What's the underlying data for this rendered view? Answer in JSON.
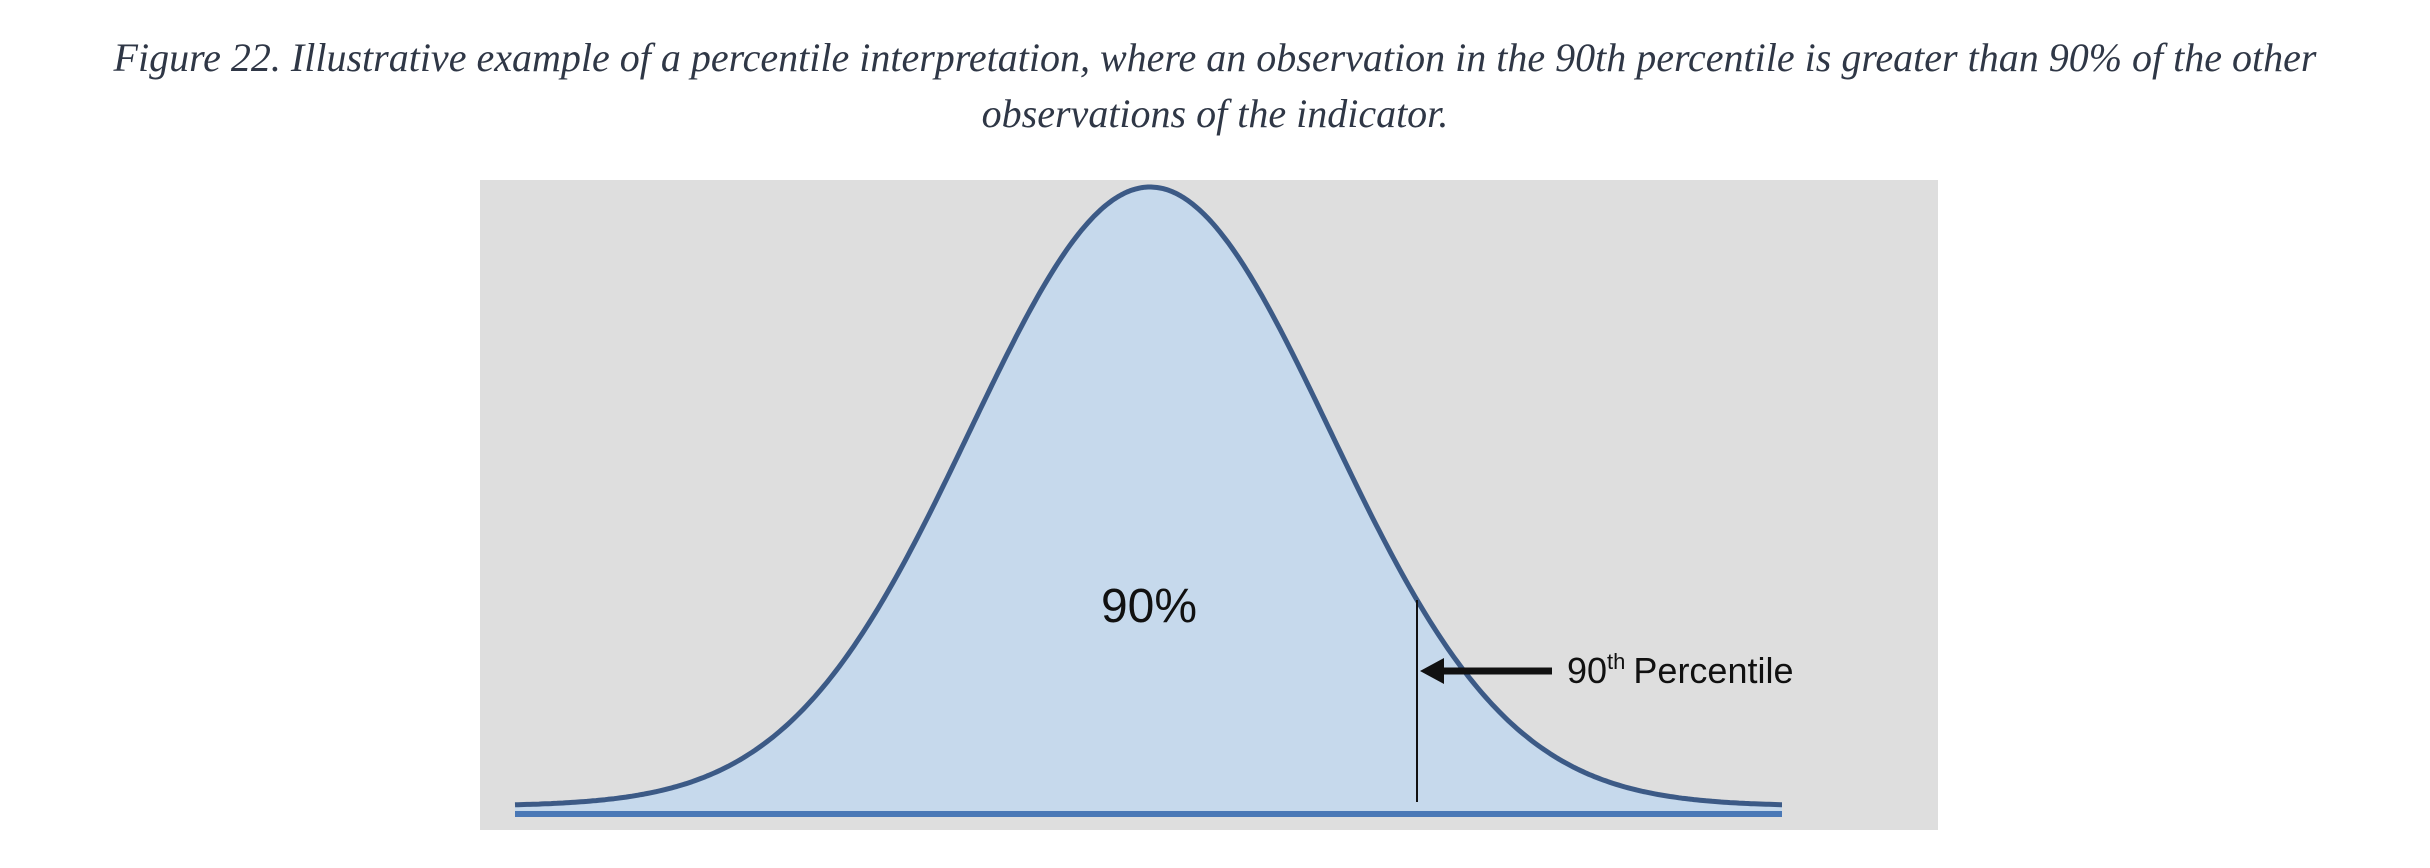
{
  "caption": {
    "line1": "Figure 22. Illustrative example of a percentile interpretation, where an observation in the 90th percentile is greater than 90% of the other",
    "line2": "observations of the indicator."
  },
  "diagram": {
    "area_label": "90%",
    "marker_number": "90",
    "marker_suffix": "th",
    "marker_text": "Percentile",
    "percentile": 90,
    "colors": {
      "panel_background": "#dedede",
      "curve_fill": "#c6d9ec",
      "curve_stroke": "#3c5a86",
      "baseline": "#4a78b6",
      "marker": "#111111",
      "caption_text": "#2f3746"
    }
  }
}
